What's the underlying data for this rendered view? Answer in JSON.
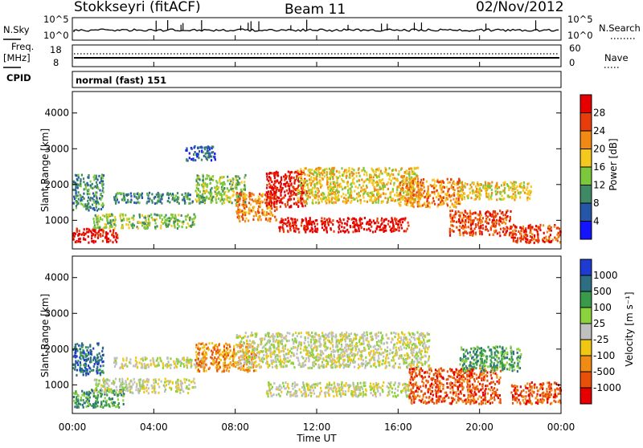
{
  "header": {
    "station": "Stokkseyri (fitACF)",
    "beam": "Beam 11",
    "date": "02/Nov/2012"
  },
  "top_panels": {
    "nsky_label": "N.Sky",
    "nsearch_label": "N.Search",
    "nave_label": "Nave",
    "freq_label_line1": "Freq.",
    "freq_label_line2": "[MHz]",
    "cpid_label": "CPID",
    "cpid_text": "normal (fast) 151",
    "noise_ticks_left": [
      "10^5",
      "10^0"
    ],
    "noise_ticks_right": [
      "10^5",
      "10^0"
    ],
    "freq_ticks": [
      "18",
      "8"
    ],
    "nave_ticks": [
      "60",
      "0"
    ]
  },
  "chart_data": [
    {
      "type": "heatmap",
      "panel": "power",
      "ylabel": "Slant Range [km]",
      "yticks": [
        "1000",
        "2000",
        "3000",
        "4000"
      ],
      "ylim": [
        200,
        4600
      ],
      "xlim": [
        "00:00",
        "24:00"
      ],
      "colorbar": {
        "label": "Power [dB]",
        "ticks": [
          "4",
          "8",
          "12",
          "16",
          "20",
          "24",
          "28"
        ],
        "colors": [
          "#1414ff",
          "#2656a8",
          "#3f8a64",
          "#7cc83c",
          "#f5c81e",
          "#f08a14",
          "#e83c0a",
          "#e60000"
        ]
      },
      "echo_regions": [
        {
          "t0": 0.0,
          "t1": 2.2,
          "r0": 400,
          "r1": 800,
          "db": 28
        },
        {
          "t0": 0.0,
          "t1": 1.5,
          "r0": 1300,
          "r1": 2300,
          "db": 10
        },
        {
          "t0": 2.0,
          "t1": 6.5,
          "r0": 1500,
          "r1": 1800,
          "db": 10
        },
        {
          "t0": 1.0,
          "t1": 6.0,
          "r0": 800,
          "r1": 1200,
          "db": 12
        },
        {
          "t0": 6.0,
          "t1": 8.5,
          "r0": 1500,
          "r1": 2300,
          "db": 12
        },
        {
          "t0": 8.0,
          "t1": 10.0,
          "r0": 1000,
          "r1": 1800,
          "db": 20
        },
        {
          "t0": 9.5,
          "t1": 11.5,
          "r0": 1400,
          "r1": 2400,
          "db": 28
        },
        {
          "t0": 10.0,
          "t1": 16.5,
          "r0": 700,
          "r1": 1100,
          "db": 28
        },
        {
          "t0": 11.0,
          "t1": 17.0,
          "r0": 1500,
          "r1": 2500,
          "db": 18
        },
        {
          "t0": 16.0,
          "t1": 19.0,
          "r0": 1400,
          "r1": 2200,
          "db": 22
        },
        {
          "t0": 18.5,
          "t1": 21.5,
          "r0": 600,
          "r1": 1300,
          "db": 26
        },
        {
          "t0": 19.0,
          "t1": 22.5,
          "r0": 1600,
          "r1": 2100,
          "db": 16
        },
        {
          "t0": 21.5,
          "t1": 24.0,
          "r0": 400,
          "r1": 900,
          "db": 24
        },
        {
          "t0": 5.5,
          "t1": 7.0,
          "r0": 2700,
          "r1": 3100,
          "db": 6
        }
      ]
    },
    {
      "type": "heatmap",
      "panel": "velocity",
      "ylabel": "Slant Range [km]",
      "yticks": [
        "1000",
        "2000",
        "3000",
        "4000"
      ],
      "ylim": [
        200,
        4600
      ],
      "xlabel": "Time UT",
      "xticks": [
        "00:00",
        "04:00",
        "08:00",
        "12:00",
        "16:00",
        "20:00",
        "00:00"
      ],
      "xlim": [
        "00:00",
        "24:00"
      ],
      "colorbar": {
        "label": "Velocity [m s⁻¹]",
        "ticks": [
          "1000",
          "500",
          "100",
          "25",
          "-25",
          "-100",
          "-500",
          "-1000"
        ],
        "colors": [
          "#1e3cd2",
          "#2e6e82",
          "#3a9a4c",
          "#8cd23c",
          "#c0c0c0",
          "#f0c814",
          "#f08c14",
          "#e8500a",
          "#e60000"
        ]
      },
      "echo_regions": [
        {
          "t0": 0.0,
          "t1": 2.5,
          "r0": 400,
          "r1": 900,
          "v": 100
        },
        {
          "t0": 0.0,
          "t1": 1.5,
          "r0": 1300,
          "r1": 2200,
          "v": 500
        },
        {
          "t0": 2.0,
          "t1": 6.5,
          "r0": 1500,
          "r1": 1800,
          "v": 0
        },
        {
          "t0": 1.0,
          "t1": 6.0,
          "r0": 800,
          "r1": 1200,
          "v": 0
        },
        {
          "t0": 6.0,
          "t1": 9.0,
          "r0": 1400,
          "r1": 2200,
          "v": -100
        },
        {
          "t0": 8.0,
          "t1": 17.5,
          "r0": 1500,
          "r1": 2500,
          "v": 0
        },
        {
          "t0": 9.5,
          "t1": 16.5,
          "r0": 700,
          "r1": 1100,
          "v": 0
        },
        {
          "t0": 16.5,
          "t1": 21.0,
          "r0": 500,
          "r1": 1500,
          "v": -500
        },
        {
          "t0": 19.0,
          "t1": 22.0,
          "r0": 1400,
          "r1": 2100,
          "v": 100
        },
        {
          "t0": 21.5,
          "t1": 24.0,
          "r0": 500,
          "r1": 1100,
          "v": -500
        }
      ]
    }
  ]
}
